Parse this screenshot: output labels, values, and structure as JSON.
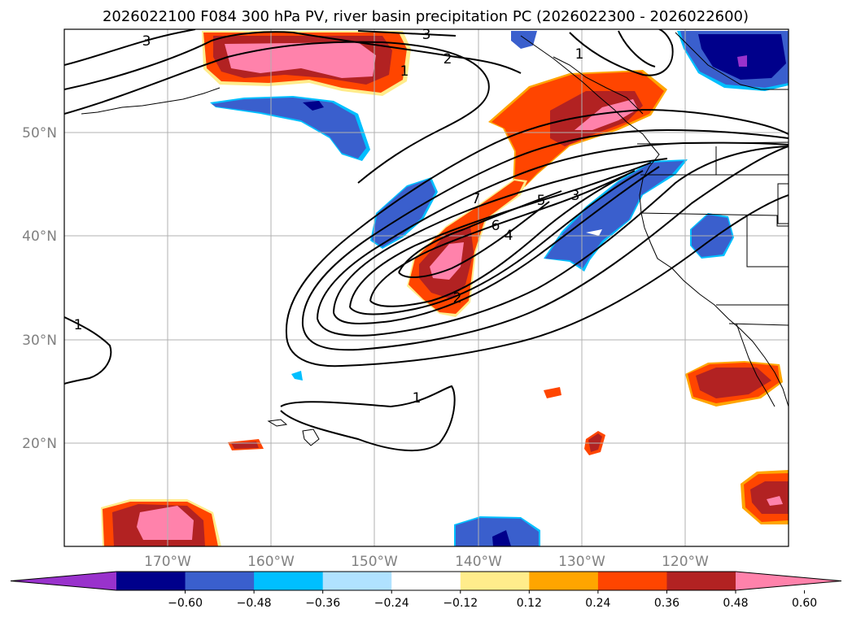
{
  "title": "2026022100 F084 300 hPa PV, river basin precipitation PC (2026022300 - 2026022600)",
  "map": {
    "lat_labels": [
      "50°N",
      "40°N",
      "30°N",
      "20°N"
    ],
    "lon_labels": [
      "170°W",
      "160°W",
      "150°W",
      "140°W",
      "130°W",
      "120°W"
    ],
    "grid": true,
    "contour_variable": "300 hPa PV",
    "contour_labels": [
      "1",
      "2",
      "3",
      "4",
      "5",
      "6",
      "7",
      "1",
      "2",
      "3",
      "1",
      "1"
    ],
    "shading_variable": "river basin precipitation PC"
  },
  "colorbar": {
    "orientation": "horizontal",
    "extend": "both",
    "tick_labels": [
      "−0.60",
      "−0.48",
      "−0.36",
      "−0.24",
      "−0.12",
      "0.12",
      "0.24",
      "0.36",
      "0.48",
      "0.60"
    ],
    "colors": [
      "#9932cc",
      "#00008b",
      "#3a5fcd",
      "#00bfff",
      "#b0e2ff",
      "#ffffff",
      "#ffec8b",
      "#ffa500",
      "#ff4500",
      "#b22222",
      "#ff82ab"
    ]
  }
}
